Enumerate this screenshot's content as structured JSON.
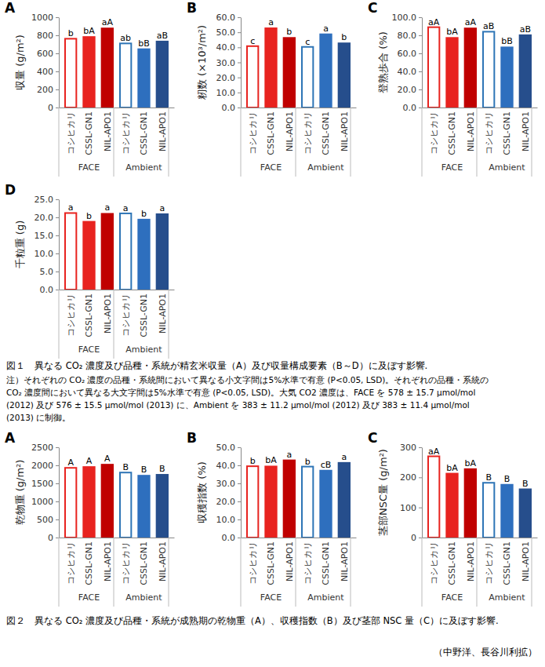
{
  "chart_data": [
    {
      "type": "bar",
      "title": "A",
      "y_label": "収量 (g/m²)",
      "categories": [
        "コシヒカリ",
        "CSSL-GN1",
        "NIL-APO1",
        "コシヒカリ",
        "CSSL-GN1",
        "NIL-APO1"
      ],
      "group_labels": [
        "FACE",
        "Ambient"
      ],
      "values": [
        762,
        790,
        885,
        710,
        655,
        740
      ],
      "annotations": [
        "b",
        "bA",
        "aA",
        "ab",
        "bB",
        "aB"
      ],
      "colors": [
        "#e8231f",
        "#e8231f",
        "#c00000",
        "#2e75b6",
        "#2e6fbe",
        "#264e8c"
      ],
      "ylim": [
        0,
        1000
      ],
      "yticks": [
        0,
        200,
        400,
        600,
        800,
        1000
      ],
      "grid": false
    },
    {
      "type": "bar",
      "title": "B",
      "y_label": "籾数 (×10³/m²)",
      "categories": [
        "コシヒカリ",
        "CSSL-GN1",
        "NIL-APO1",
        "コシヒカリ",
        "CSSL-GN1",
        "NIL-APO1"
      ],
      "group_labels": [
        "FACE",
        "Ambient"
      ],
      "values": [
        40.8,
        53.2,
        46.8,
        40.3,
        49.2,
        43.2
      ],
      "annotations": [
        "c",
        "a",
        "b",
        "c",
        "a",
        "b"
      ],
      "colors": [
        "#e8231f",
        "#e8231f",
        "#c00000",
        "#2e75b6",
        "#2e6fbe",
        "#264e8c"
      ],
      "ylim": [
        0,
        60
      ],
      "yticks": [
        {
          "value": 0,
          "label": "0.0"
        },
        {
          "value": 10,
          "label": "10.0"
        },
        {
          "value": 20,
          "label": "20.0"
        },
        {
          "value": 30,
          "label": "30.0"
        },
        {
          "value": 40,
          "label": "40.0"
        },
        {
          "value": 50,
          "label": "50.0"
        },
        {
          "value": 60,
          "label": "60.0"
        }
      ],
      "grid": false
    },
    {
      "type": "bar",
      "title": "C",
      "y_label": "登熟歩合 (%)",
      "categories": [
        "コシヒカリ",
        "CSSL-GN1",
        "NIL-APO1",
        "コシヒカリ",
        "CSSL-GN1",
        "NIL-APO1"
      ],
      "group_labels": [
        "FACE",
        "Ambient"
      ],
      "values": [
        89,
        78,
        88.5,
        84,
        67.5,
        81
      ],
      "annotations": [
        "aA",
        "bA",
        "aA",
        "aB",
        "bB",
        "aB"
      ],
      "colors": [
        "#e8231f",
        "#e8231f",
        "#c00000",
        "#2e75b6",
        "#2e6fbe",
        "#264e8c"
      ],
      "ylim": [
        0,
        100
      ],
      "yticks": [
        {
          "value": 0,
          "label": "0.0"
        },
        {
          "value": 20,
          "label": "20.0"
        },
        {
          "value": 40,
          "label": "40.0"
        },
        {
          "value": 60,
          "label": "60.0"
        },
        {
          "value": 80,
          "label": "80.0"
        },
        {
          "value": 100,
          "label": "100.0"
        }
      ],
      "grid": false
    },
    {
      "type": "bar",
      "title": "D",
      "y_label": "千粒重 (g)",
      "categories": [
        "コシヒカリ",
        "CSSL-GN1",
        "NIL-APO1",
        "コシヒカリ",
        "CSSL-GN1",
        "NIL-APO1"
      ],
      "group_labels": [
        "FACE",
        "Ambient"
      ],
      "values": [
        21.2,
        19.0,
        21.2,
        21.1,
        19.6,
        21.1
      ],
      "annotations": [
        "a",
        "b",
        "a",
        "a",
        "b",
        "a"
      ],
      "colors": [
        "#e8231f",
        "#e8231f",
        "#c00000",
        "#2e75b6",
        "#2e6fbe",
        "#264e8c"
      ],
      "ylim": [
        0,
        25
      ],
      "yticks": [
        {
          "value": 0,
          "label": "0.0"
        },
        {
          "value": 5,
          "label": "5.0"
        },
        {
          "value": 10,
          "label": "10.0"
        },
        {
          "value": 15,
          "label": "15.0"
        },
        {
          "value": 20,
          "label": "20.0"
        },
        {
          "value": 25,
          "label": "25.0"
        }
      ],
      "grid": false
    },
    {
      "type": "bar",
      "title": "A",
      "y_label": "乾物重 (g/m²)",
      "categories": [
        "コシヒカリ",
        "CSSL-GN1",
        "NIL-APO1",
        "コシヒカリ",
        "CSSL-GN1",
        "NIL-APO1"
      ],
      "group_labels": [
        "FACE",
        "Ambient"
      ],
      "values": [
        1930,
        1975,
        2040,
        1800,
        1735,
        1760
      ],
      "annotations": [
        "A",
        "A",
        "A",
        "B",
        "B",
        "B"
      ],
      "colors": [
        "#e8231f",
        "#e8231f",
        "#c00000",
        "#2e75b6",
        "#2e6fbe",
        "#264e8c"
      ],
      "ylim": [
        0,
        2500
      ],
      "yticks": [
        0,
        500,
        1000,
        1500,
        2000,
        2500
      ],
      "grid": false
    },
    {
      "type": "bar",
      "title": "B",
      "y_label": "収穫指数 (%)",
      "categories": [
        "コシヒカリ",
        "CSSL-GN1",
        "NIL-APO1",
        "コシヒカリ",
        "CSSL-GN1",
        "NIL-APO1"
      ],
      "group_labels": [
        "FACE",
        "Ambient"
      ],
      "values": [
        39.5,
        39.8,
        43.2,
        39.3,
        37.5,
        41.8
      ],
      "annotations": [
        "b",
        "bA",
        "a",
        "b",
        "cB",
        "a"
      ],
      "colors": [
        "#e8231f",
        "#e8231f",
        "#c00000",
        "#2e75b6",
        "#2e6fbe",
        "#264e8c"
      ],
      "ylim": [
        0,
        50
      ],
      "yticks": [
        {
          "value": 0,
          "label": "0.0"
        },
        {
          "value": 10,
          "label": "10.0"
        },
        {
          "value": 20,
          "label": "20.0"
        },
        {
          "value": 30,
          "label": "30.0"
        },
        {
          "value": 40,
          "label": "40.0"
        },
        {
          "value": 50,
          "label": "50.0"
        }
      ],
      "grid": false
    },
    {
      "type": "bar",
      "title": "C",
      "y_label": "茎部NSC量 (g/m²)",
      "categories": [
        "コシヒカリ",
        "CSSL-GN1",
        "NIL-APO1",
        "コシヒカリ",
        "CSSL-GN1",
        "NIL-APO1"
      ],
      "group_labels": [
        "FACE",
        "Ambient"
      ],
      "values": [
        270,
        215,
        230,
        182,
        178,
        163
      ],
      "annotations": [
        "aA",
        "bA",
        "bA",
        "B",
        "B",
        "B"
      ],
      "colors": [
        "#e8231f",
        "#e8231f",
        "#c00000",
        "#2e75b6",
        "#2e6fbe",
        "#264e8c"
      ],
      "ylim": [
        0,
        300
      ],
      "yticks": [
        0,
        100,
        200,
        300
      ],
      "grid": false
    }
  ],
  "figure1_caption": "図１　異なる CO₂ 濃度及び品種・系統が精玄米収量（A）及び収量構成要素（B～D）に及ぼす影響.",
  "figure1_note": [
    "注）それぞれの CO₂ 濃度の品種・系統間において異なる小文字間は5%水準で有意 (P<0.05, LSD)。それぞれの品種・系統の",
    "CO₂ 濃度間において異なる大文字間は5%水準で有意 (P<0.05, LSD)。大気 CO2 濃度は、FACE を 578 ± 15.7 μmol/mol",
    "(2012) 及び 576 ± 15.5 μmol/mol (2013) に、Ambient を 383 ± 11.2 μmol/mol (2012) 及び 383 ± 11.4 μmol/mol",
    "(2013) に制御。"
  ],
  "figure2_caption": "図２　異なる CO₂ 濃度及び品種・系統が成熟期の乾物重（A）、収穫指数（B）及び茎部 NSC 量（C）に及ぼす影響.",
  "credit": "（中野洋、長谷川利拡）"
}
